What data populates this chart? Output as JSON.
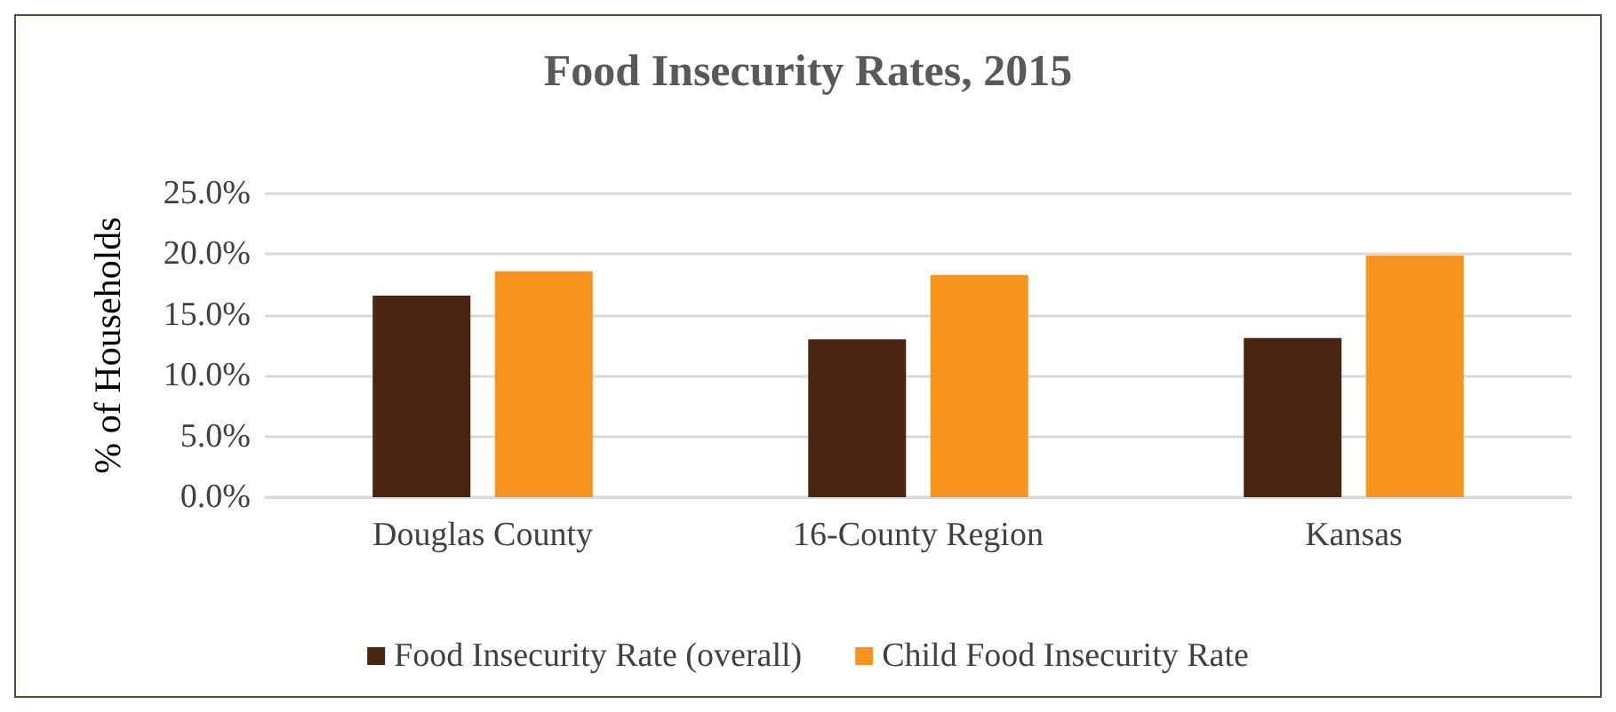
{
  "chart_data": {
    "type": "bar",
    "title": "Food Insecurity Rates, 2015",
    "ylabel": "% of Households",
    "categories": [
      "Douglas County",
      "16-County Region",
      "Kansas"
    ],
    "series": [
      {
        "name": "Food Insecurity Rate (overall)",
        "color": "#4a2511",
        "values": [
          16.6,
          13.0,
          13.1
        ]
      },
      {
        "name": "Child Food Insecurity Rate",
        "color": "#f7941e",
        "values": [
          18.6,
          18.3,
          19.9
        ]
      }
    ],
    "ylim": [
      0,
      25
    ],
    "yticks": [
      {
        "value": 0,
        "label": "0.0%"
      },
      {
        "value": 5,
        "label": "5.0%"
      },
      {
        "value": 10,
        "label": "10.0%"
      },
      {
        "value": 15,
        "label": "15.0%"
      },
      {
        "value": 20,
        "label": "20.0%"
      },
      {
        "value": 25,
        "label": "25.0%"
      }
    ],
    "grid": "y",
    "legend": "bottom"
  }
}
